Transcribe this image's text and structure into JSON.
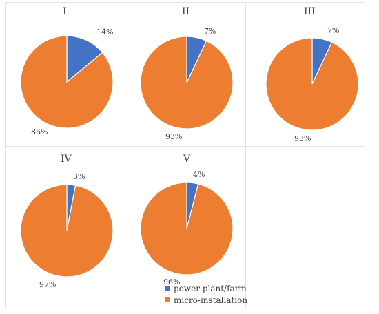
{
  "colors": {
    "power": "#4472C4",
    "micro": "#ED7D31"
  },
  "legend": [
    {
      "label": "power plant/farm",
      "color": "#4472C4"
    },
    {
      "label": "micro-installation",
      "color": "#ED7D31"
    }
  ],
  "chart_data": [
    {
      "type": "pie",
      "title": "I",
      "series": [
        {
          "categories": [
            "power plant/farm",
            "micro-installation"
          ],
          "values": [
            14,
            86
          ],
          "labels": [
            "14%",
            "86%"
          ]
        }
      ]
    },
    {
      "type": "pie",
      "title": "II",
      "series": [
        {
          "categories": [
            "power plant/farm",
            "micro-installation"
          ],
          "values": [
            7,
            93
          ],
          "labels": [
            "7%",
            "93%"
          ]
        }
      ]
    },
    {
      "type": "pie",
      "title": "III",
      "series": [
        {
          "categories": [
            "power plant/farm",
            "micro-installation"
          ],
          "values": [
            7,
            93
          ],
          "labels": [
            "7%",
            "93%"
          ]
        }
      ]
    },
    {
      "type": "pie",
      "title": "IV",
      "series": [
        {
          "categories": [
            "power plant/farm",
            "micro-installation"
          ],
          "values": [
            3,
            97
          ],
          "labels": [
            "3%",
            "97%"
          ]
        }
      ]
    },
    {
      "type": "pie",
      "title": "V",
      "series": [
        {
          "categories": [
            "power plant/farm",
            "micro-installation"
          ],
          "values": [
            4,
            96
          ],
          "labels": [
            "4%",
            "96%"
          ]
        }
      ]
    }
  ]
}
